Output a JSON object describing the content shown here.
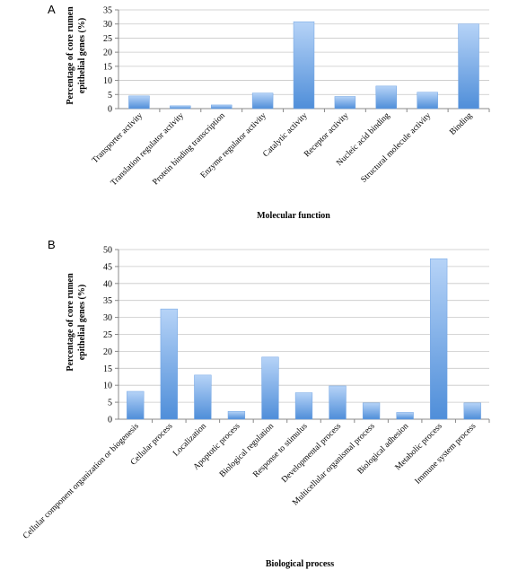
{
  "chart_data": [
    {
      "type": "bar",
      "panel": "A",
      "categories": [
        "Transporter activity",
        "Translation regulator activity",
        "Protein binding transcription",
        "Enzyme regulator activity",
        "Catalytic activity",
        "Receptor activity",
        "Nucleic acid binding",
        "Structural molecule activity",
        "Binding"
      ],
      "values": [
        4.5,
        1.0,
        1.3,
        5.5,
        30.8,
        4.3,
        8.0,
        5.8,
        30.0
      ],
      "ylabel_lines": [
        "Percentage of core rumen",
        "epithelial genes (%)"
      ],
      "xlabel": "Molecular function",
      "ylim": [
        0,
        35
      ],
      "yticks": [
        0,
        5,
        10,
        15,
        20,
        25,
        30,
        35
      ],
      "grid": true,
      "bar_color_top": "#b6d3f7",
      "bar_color_bottom": "#4f8ed9"
    },
    {
      "type": "bar",
      "panel": "B",
      "categories": [
        "Cellular component organization or biogenesis",
        "Cellular process",
        "Localization",
        "Apoptotic process",
        "Biological regulation",
        "Response to stimulus",
        "Developmental process",
        "Multicellular organismal process",
        "Biological adhesion",
        "Metabolic process",
        "Immune system process"
      ],
      "values": [
        8.2,
        32.5,
        13.0,
        2.3,
        18.3,
        7.8,
        9.8,
        4.8,
        2.0,
        47.3,
        4.8
      ],
      "ylabel_lines": [
        "Percentage of core  rumen",
        "epithelial genes (%)"
      ],
      "xlabel": "Biological process",
      "ylim": [
        0,
        50
      ],
      "yticks": [
        0,
        5,
        10,
        15,
        20,
        25,
        30,
        35,
        40,
        45,
        50
      ],
      "grid": true,
      "bar_color_top": "#b6d3f7",
      "bar_color_bottom": "#4f8ed9"
    }
  ]
}
